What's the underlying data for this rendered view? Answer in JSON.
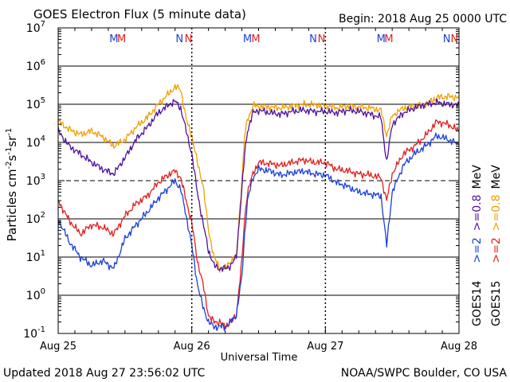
{
  "header": {
    "title": "GOES Electron Flux (5 minute data)",
    "begin": "Begin: 2018 Aug 25 0000 UTC"
  },
  "footer": {
    "updated": "Updated 2018 Aug 27 23:56:02 UTC",
    "credit": "NOAA/SWPC Boulder, CO USA"
  },
  "chart_data": {
    "type": "line",
    "title": "GOES Electron Flux (5 minute data)",
    "xlabel": "Universal Time",
    "ylabel": "Particles cm-2s-1sr-1",
    "yscale": "log",
    "ylim": [
      0.1,
      10000000
    ],
    "xlim": [
      0,
      72
    ],
    "x_unit": "hours since 2018 Aug 25 0000 UTC",
    "x_ticks": [
      {
        "x": 0,
        "label": "Aug 25"
      },
      {
        "x": 24,
        "label": "Aug 26"
      },
      {
        "x": 48,
        "label": "Aug 27"
      },
      {
        "x": 72,
        "label": "Aug 28"
      }
    ],
    "y_ticks": [
      {
        "value": 0.1,
        "base": "10",
        "exp": "-1"
      },
      {
        "value": 1,
        "base": "10",
        "exp": "0"
      },
      {
        "value": 10,
        "base": "10",
        "exp": "1"
      },
      {
        "value": 100,
        "base": "10",
        "exp": "2"
      },
      {
        "value": 1000,
        "base": "10",
        "exp": "3"
      },
      {
        "value": 10000,
        "base": "10",
        "exp": "4"
      },
      {
        "value": 100000,
        "base": "10",
        "exp": "5"
      },
      {
        "value": 1000000,
        "base": "10",
        "exp": "6"
      },
      {
        "value": 10000000,
        "base": "10",
        "exp": "7"
      }
    ],
    "dashed_threshold": 1000,
    "top_markers": [
      {
        "x": 10.0,
        "label": "M",
        "color": "#1f3fd0"
      },
      {
        "x": 11.4,
        "label": "M",
        "color": "#e02020"
      },
      {
        "x": 21.8,
        "label": "N",
        "color": "#1f3fd0"
      },
      {
        "x": 23.4,
        "label": "N",
        "color": "#e02020"
      },
      {
        "x": 34.0,
        "label": "M",
        "color": "#1f3fd0"
      },
      {
        "x": 35.5,
        "label": "M",
        "color": "#e02020"
      },
      {
        "x": 45.8,
        "label": "N",
        "color": "#1f3fd0"
      },
      {
        "x": 47.3,
        "label": "N",
        "color": "#e02020"
      },
      {
        "x": 58.0,
        "label": "M",
        "color": "#1f3fd0"
      },
      {
        "x": 59.4,
        "label": "M",
        "color": "#e02020"
      },
      {
        "x": 69.8,
        "label": "N",
        "color": "#1f3fd0"
      },
      {
        "x": 71.2,
        "label": "N",
        "color": "#e02020"
      }
    ],
    "legend": {
      "goes14": "GOES14",
      "goes15": "GOES15",
      "ge2": ">=2",
      "ge08": ">=0.8",
      "mev": "MeV"
    },
    "series": [
      {
        "name": "GOES15 >=0.8 MeV",
        "color": "#f0a000",
        "x": [
          0,
          2,
          4,
          6,
          8,
          10,
          12,
          14,
          16,
          18,
          20,
          21,
          22,
          23,
          24,
          25,
          26,
          27,
          28,
          29,
          30,
          31,
          32,
          33,
          33.5,
          34,
          35,
          36,
          38,
          40,
          42,
          44,
          46,
          48,
          50,
          52,
          54,
          56,
          58,
          59,
          60,
          62,
          64,
          66,
          68,
          70,
          72
        ],
        "values": [
          35000,
          22000,
          16000,
          20000,
          14000,
          8000,
          12000,
          25000,
          45000,
          100000,
          200000,
          280000,
          250000,
          40000,
          15000,
          3000,
          800,
          50,
          10,
          5,
          5,
          8,
          10,
          1000,
          15000,
          40000,
          90000,
          90000,
          85000,
          80000,
          90000,
          100000,
          95000,
          95000,
          80000,
          90000,
          85000,
          80000,
          70000,
          15000,
          50000,
          80000,
          90000,
          100000,
          150000,
          160000,
          150000
        ]
      },
      {
        "name": "GOES14 >=0.8 MeV",
        "color": "#5010a0",
        "x": [
          0,
          2,
          4,
          6,
          8,
          10,
          12,
          14,
          16,
          18,
          20,
          21,
          22,
          23,
          24,
          25,
          26,
          27,
          28,
          29,
          30,
          31,
          32,
          33,
          33.5,
          34,
          35,
          36,
          38,
          40,
          42,
          44,
          46,
          48,
          50,
          52,
          54,
          56,
          58,
          59,
          60,
          62,
          64,
          66,
          68,
          70,
          72
        ],
        "values": [
          20000,
          8000,
          5000,
          3000,
          2000,
          1500,
          4000,
          12000,
          25000,
          60000,
          100000,
          120000,
          80000,
          20000,
          5000,
          500,
          80,
          15,
          6,
          5,
          5,
          6,
          10,
          600,
          5000,
          20000,
          60000,
          70000,
          60000,
          55000,
          65000,
          70000,
          65000,
          65000,
          60000,
          70000,
          65000,
          55000,
          45000,
          3000,
          30000,
          60000,
          80000,
          100000,
          110000,
          100000,
          95000
        ]
      },
      {
        "name": "GOES15 >=2 MeV",
        "color": "#e02020",
        "x": [
          0,
          2,
          4,
          6,
          8,
          10,
          12,
          14,
          16,
          18,
          20,
          21,
          22,
          23,
          24,
          25,
          26,
          27,
          28,
          29,
          30,
          31,
          32,
          33,
          33.5,
          34,
          35,
          36,
          38,
          40,
          42,
          44,
          46,
          48,
          50,
          52,
          54,
          56,
          58,
          59,
          60,
          62,
          64,
          66,
          68,
          70,
          72
        ],
        "values": [
          300,
          90,
          40,
          70,
          60,
          40,
          120,
          250,
          400,
          900,
          1500,
          1800,
          1200,
          300,
          80,
          8,
          2,
          0.3,
          0.2,
          0.2,
          0.15,
          0.2,
          0.3,
          8,
          100,
          500,
          1500,
          3000,
          2800,
          2500,
          3000,
          3500,
          3000,
          3000,
          2000,
          1800,
          1500,
          1400,
          1200,
          300,
          1500,
          5000,
          8000,
          15000,
          35000,
          30000,
          20000
        ]
      },
      {
        "name": "GOES14 >=2 MeV",
        "color": "#1a3fdc",
        "x": [
          0,
          2,
          4,
          6,
          8,
          10,
          12,
          14,
          16,
          18,
          20,
          21,
          22,
          23,
          24,
          25,
          26,
          27,
          28,
          29,
          30,
          31,
          32,
          33,
          33.5,
          34,
          35,
          36,
          38,
          40,
          42,
          44,
          46,
          48,
          50,
          52,
          54,
          56,
          58,
          59,
          60,
          62,
          64,
          66,
          68,
          70,
          72
        ],
        "values": [
          100,
          25,
          10,
          6,
          8,
          5,
          30,
          70,
          150,
          350,
          700,
          1000,
          600,
          120,
          20,
          2,
          0.5,
          0.2,
          0.15,
          0.15,
          0.15,
          0.2,
          0.3,
          3,
          40,
          300,
          1200,
          2000,
          1800,
          1400,
          1600,
          1800,
          1500,
          1400,
          900,
          700,
          500,
          450,
          400,
          20,
          500,
          2500,
          5000,
          8000,
          15000,
          12000,
          9000
        ]
      }
    ]
  }
}
